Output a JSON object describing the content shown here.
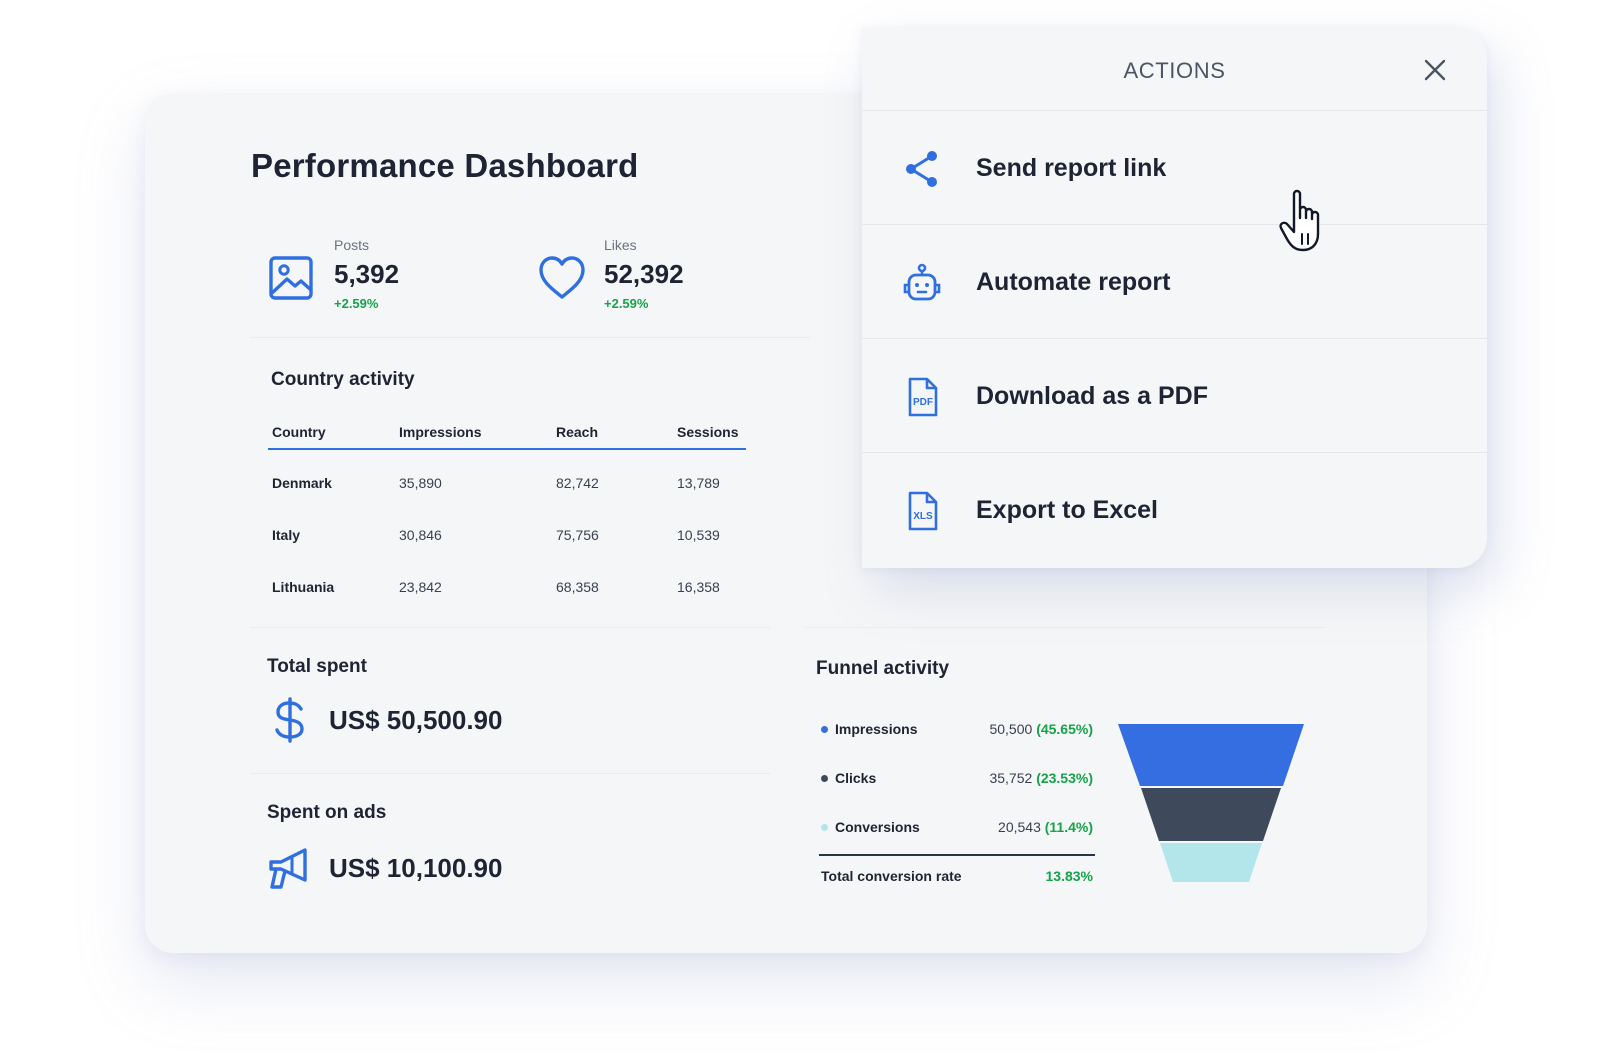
{
  "dashboard": {
    "title": "Performance Dashboard",
    "kpis": [
      {
        "label": "Posts",
        "value": "5,392",
        "change": "+2.59%",
        "icon": "image-icon"
      },
      {
        "label": "Likes",
        "value": "52,392",
        "change": "+2.59%",
        "icon": "heart-icon"
      }
    ],
    "country_activity": {
      "title": "Country activity",
      "columns": [
        "Country",
        "Impressions",
        "Reach",
        "Sessions"
      ],
      "rows": [
        [
          "Denmark",
          "35,890",
          "82,742",
          "13,789"
        ],
        [
          "Italy",
          "30,846",
          "75,756",
          "10,539"
        ],
        [
          "Lithuania",
          "23,842",
          "68,358",
          "16,358"
        ]
      ]
    },
    "total_spent": {
      "title": "Total spent",
      "value": "US$ 50,500.90",
      "icon": "dollar-icon"
    },
    "spent_on_ads": {
      "title": "Spent on ads",
      "value": "US$ 10,100.90",
      "icon": "megaphone-icon"
    },
    "funnel": {
      "title": "Funnel activity",
      "items": [
        {
          "name": "Impressions",
          "value": "50,500",
          "pct": "(45.65%)",
          "color": "#356ee0"
        },
        {
          "name": "Clicks",
          "value": "35,752",
          "pct": "(23.53%)",
          "color": "#3e4a5c"
        },
        {
          "name": "Conversions",
          "value": "20,543",
          "pct": "(11.4%)",
          "color": "#b3e6ea"
        }
      ],
      "total_label": "Total conversion rate",
      "total_value": "13.83%"
    }
  },
  "actions": {
    "title": "ACTIONS",
    "close_icon": "close-icon",
    "items": [
      {
        "label": "Send report link",
        "icon": "share-icon"
      },
      {
        "label": "Automate report",
        "icon": "robot-icon"
      },
      {
        "label": "Download as a PDF",
        "icon": "pdf-file-icon"
      },
      {
        "label": "Export to Excel",
        "icon": "xls-file-icon"
      }
    ]
  },
  "colors": {
    "accent": "#2f6fe0",
    "positive": "#16a34a",
    "text_dark": "#1e2433",
    "panel_bg": "#f5f6f7"
  },
  "cursor": {
    "icon": "hand-pointer-icon"
  }
}
